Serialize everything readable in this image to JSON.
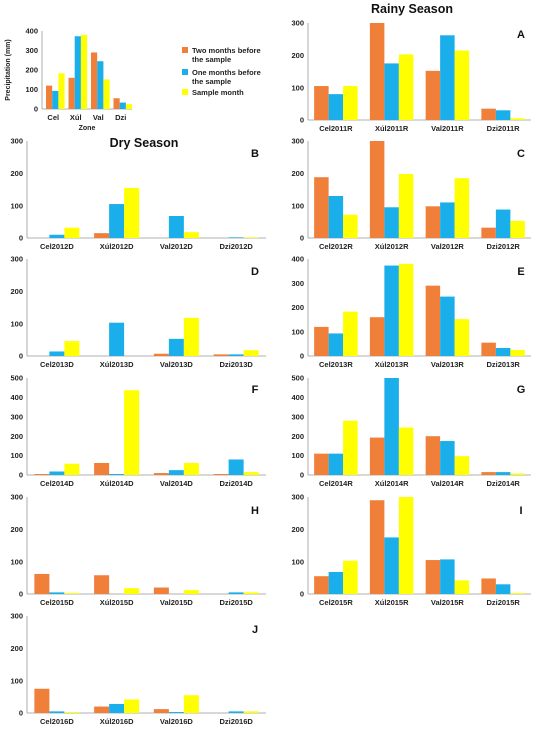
{
  "colors": {
    "two_months": "#F07F3A",
    "one_month": "#1AAEEA",
    "sample_month": "#FFFF00"
  },
  "season_titles": {
    "rainy": "Rainy Season",
    "dry": "Dry Season"
  },
  "legend": {
    "two_months": [
      "Two months before",
      "the sample"
    ],
    "one_month": [
      "One months before",
      "the sample"
    ],
    "sample_month": [
      "Sample month"
    ]
  },
  "chart_data": [
    {
      "id": "zone",
      "type": "bar",
      "title": "",
      "xlabel": "Zone",
      "ylabel": "Precipitation (mm)",
      "ylim": [
        0,
        400
      ],
      "yticks": [
        0,
        100,
        200,
        300,
        400
      ],
      "grid": false,
      "categories": [
        "Cel",
        "Xúl",
        "Val",
        "Dzi"
      ],
      "series": [
        {
          "name": "Two months before the sample",
          "values": [
            120,
            160,
            290,
            55
          ]
        },
        {
          "name": "One months before the sample",
          "values": [
            93,
            373,
            245,
            33
          ]
        },
        {
          "name": "Sample month",
          "values": [
            183,
            380,
            152,
            25
          ]
        }
      ]
    },
    {
      "id": "A",
      "type": "bar",
      "panel_label": "A",
      "ylim": [
        0,
        300
      ],
      "yticks": [
        0,
        100,
        200,
        300
      ],
      "categories": [
        "Cel2011R",
        "Xúl2011R",
        "Val2011R",
        "Dzi2011R"
      ],
      "series": [
        {
          "name": "Two months before the sample",
          "values": [
            105,
            300,
            152,
            35
          ]
        },
        {
          "name": "One months before the sample",
          "values": [
            80,
            175,
            262,
            30
          ]
        },
        {
          "name": "Sample month",
          "values": [
            105,
            203,
            215,
            5
          ]
        }
      ]
    },
    {
      "id": "B",
      "type": "bar",
      "panel_label": "B",
      "ylim": [
        0,
        300
      ],
      "yticks": [
        0,
        100,
        200,
        300
      ],
      "categories": [
        "Cel2012D",
        "Xúl2012D",
        "Val2012D",
        "Dzi2012D"
      ],
      "series": [
        {
          "name": "Two months before the sample",
          "values": [
            0,
            15,
            0,
            0
          ]
        },
        {
          "name": "One months before the sample",
          "values": [
            10,
            105,
            68,
            2
          ]
        },
        {
          "name": "Sample month",
          "values": [
            32,
            155,
            18,
            2
          ]
        }
      ]
    },
    {
      "id": "C",
      "type": "bar",
      "panel_label": "C",
      "ylim": [
        0,
        300
      ],
      "yticks": [
        0,
        100,
        200,
        300
      ],
      "categories": [
        "Cel2012R",
        "Xúl2012R",
        "Val2012R",
        "Dzi2012R"
      ],
      "series": [
        {
          "name": "Two months before the sample",
          "values": [
            188,
            300,
            98,
            32
          ]
        },
        {
          "name": "One months before the sample",
          "values": [
            130,
            95,
            110,
            88
          ]
        },
        {
          "name": "Sample month",
          "values": [
            72,
            198,
            185,
            53
          ]
        }
      ]
    },
    {
      "id": "D",
      "type": "bar",
      "panel_label": "D",
      "ylim": [
        0,
        300
      ],
      "yticks": [
        0,
        100,
        200,
        300
      ],
      "categories": [
        "Cel2013D",
        "Xúl2013D",
        "Val2013D",
        "Dzi2013D"
      ],
      "series": [
        {
          "name": "Two months before the sample",
          "values": [
            0,
            0,
            7,
            5
          ]
        },
        {
          "name": "One months before the sample",
          "values": [
            14,
            103,
            53,
            5
          ]
        },
        {
          "name": "Sample month",
          "values": [
            46,
            0,
            118,
            18
          ]
        }
      ]
    },
    {
      "id": "E",
      "type": "bar",
      "panel_label": "E",
      "ylim": [
        0,
        400
      ],
      "yticks": [
        0,
        100,
        200,
        300,
        400
      ],
      "categories": [
        "Cel2013R",
        "Xúl2013R",
        "Val2013R",
        "Dzi2013R"
      ],
      "series": [
        {
          "name": "Two months before the sample",
          "values": [
            120,
            160,
            290,
            55
          ]
        },
        {
          "name": "One months before the sample",
          "values": [
            93,
            373,
            245,
            33
          ]
        },
        {
          "name": "Sample month",
          "values": [
            183,
            380,
            152,
            25
          ]
        }
      ]
    },
    {
      "id": "F",
      "type": "bar",
      "panel_label": "F",
      "ylim": [
        0,
        500
      ],
      "yticks": [
        0,
        100,
        200,
        300,
        400,
        500
      ],
      "categories": [
        "Cel2014D",
        "Xúl2014D",
        "Val2014D",
        "Dzi2014D"
      ],
      "series": [
        {
          "name": "Two months before the sample",
          "values": [
            5,
            62,
            10,
            5
          ]
        },
        {
          "name": "One months before the sample",
          "values": [
            18,
            5,
            25,
            80
          ]
        },
        {
          "name": "Sample month",
          "values": [
            58,
            437,
            62,
            15
          ]
        }
      ]
    },
    {
      "id": "G",
      "type": "bar",
      "panel_label": "G",
      "ylim": [
        0,
        500
      ],
      "yticks": [
        0,
        100,
        200,
        300,
        400,
        500
      ],
      "categories": [
        "Cel2014R",
        "Xúl2014R",
        "Val2014R",
        "Dzi2014R"
      ],
      "series": [
        {
          "name": "Two months before the sample",
          "values": [
            110,
            193,
            200,
            15
          ]
        },
        {
          "name": "One months before the sample",
          "values": [
            110,
            500,
            175,
            15
          ]
        },
        {
          "name": "Sample month",
          "values": [
            280,
            245,
            97,
            8
          ]
        }
      ]
    },
    {
      "id": "H",
      "type": "bar",
      "panel_label": "H",
      "ylim": [
        0,
        300
      ],
      "yticks": [
        0,
        100,
        200,
        300
      ],
      "categories": [
        "Cel2015D",
        "Xúl2015D",
        "Val2015D",
        "Dzi2015D"
      ],
      "series": [
        {
          "name": "Two months before the sample",
          "values": [
            62,
            58,
            20,
            0
          ]
        },
        {
          "name": "One months before the sample",
          "values": [
            5,
            0,
            0,
            5
          ]
        },
        {
          "name": "Sample month",
          "values": [
            3,
            18,
            12,
            5
          ]
        }
      ]
    },
    {
      "id": "I",
      "type": "bar",
      "panel_label": "I",
      "ylim": [
        0,
        300
      ],
      "yticks": [
        0,
        100,
        200,
        300
      ],
      "categories": [
        "Cel2015R",
        "Xúl2015R",
        "Val2015R",
        "Dzi2015R"
      ],
      "series": [
        {
          "name": "Two months before the sample",
          "values": [
            55,
            290,
            105,
            48
          ]
        },
        {
          "name": "One months before the sample",
          "values": [
            68,
            175,
            107,
            30
          ]
        },
        {
          "name": "Sample month",
          "values": [
            103,
            300,
            42,
            3
          ]
        }
      ]
    },
    {
      "id": "J",
      "type": "bar",
      "panel_label": "J",
      "ylim": [
        0,
        300
      ],
      "yticks": [
        0,
        100,
        200,
        300
      ],
      "categories": [
        "Cel2016D",
        "Xúl2016D",
        "Val2016D",
        "Dzi2016D"
      ],
      "series": [
        {
          "name": "Two months before the sample",
          "values": [
            75,
            20,
            12,
            0
          ]
        },
        {
          "name": "One months before the sample",
          "values": [
            5,
            28,
            3,
            5
          ]
        },
        {
          "name": "Sample month",
          "values": [
            3,
            42,
            55,
            5
          ]
        }
      ]
    }
  ]
}
